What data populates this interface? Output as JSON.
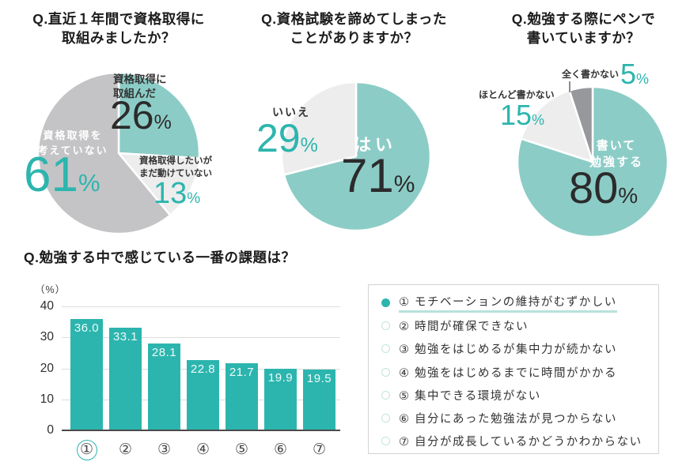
{
  "misc": {
    "percent_sign": "%"
  },
  "colors": {
    "accent_teal": "#2cb5ae",
    "pie_teal": "#8cccc6",
    "pie_gray": "#c4c4c6",
    "pie_light_gray": "#ededed",
    "pie_dark_gray": "#97989b",
    "text_dark": "#2b2b2b",
    "white": "#ffffff",
    "grid_gray": "#dcdcdc",
    "legend_underline": "#b8e2db",
    "legend_open_circle": "#c2e4df"
  },
  "chart_data": [
    {
      "type": "pie",
      "title": "Q.直近１年間で資格取得に取組みましたか？",
      "title_lines": [
        "Q.直近１年間で資格取得に",
        "取組みましたか？"
      ],
      "start_angle_deg": 0,
      "direction": "clockwise",
      "slices": [
        {
          "label": "資格取得に取組んだ",
          "label_lines": [
            "資格取得に",
            "取組んだ"
          ],
          "value": 26,
          "color": "#8cccc6",
          "value_color": "#2b2b2b"
        },
        {
          "label": "資格取得したいがまだ動けていない",
          "label_lines": [
            "資格取得したいが",
            "まだ動けていない"
          ],
          "value": 13,
          "color": "#ededed",
          "value_color": "#2cb5ae"
        },
        {
          "label": "資格取得を考えていない",
          "label_lines": [
            "資格取得を",
            "考えていない"
          ],
          "value": 61,
          "color": "#c4c4c6",
          "value_color": "#2cb5ae"
        }
      ]
    },
    {
      "type": "pie",
      "title": "Q.資格試験を諦めてしまったことがありますか？",
      "title_lines": [
        "Q.資格試験を諦めてしまった",
        "ことがありますか？"
      ],
      "start_angle_deg": 0,
      "direction": "clockwise",
      "slices": [
        {
          "label": "はい",
          "value": 71,
          "color": "#8cccc6",
          "value_color": "#2b2b2b"
        },
        {
          "label": "いいえ",
          "value": 29,
          "color": "#ededed",
          "value_color": "#2cb5ae"
        }
      ]
    },
    {
      "type": "pie",
      "title": "Q.勉強する際にペンで書いていますか？",
      "title_lines": [
        "Q.勉強する際にペンで",
        "書いていますか？"
      ],
      "start_angle_deg": 0,
      "direction": "clockwise",
      "slices": [
        {
          "label": "書いて勉強する",
          "label_lines": [
            "書いて",
            "勉強する"
          ],
          "value": 80,
          "color": "#8cccc6",
          "value_color": "#2b2b2b"
        },
        {
          "label": "ほとんど書かない",
          "value": 15,
          "color": "#ededed",
          "value_color": "#2cb5ae"
        },
        {
          "label": "全く書かない",
          "value": 5,
          "color": "#97989b",
          "value_color": "#2cb5ae"
        }
      ]
    },
    {
      "type": "bar",
      "title": "Q.勉強する中で感じている一番の課題は？",
      "unit_label": "（%）",
      "categories": [
        "①",
        "②",
        "③",
        "④",
        "⑤",
        "⑥",
        "⑦"
      ],
      "values": [
        36.0,
        33.1,
        28.1,
        22.8,
        21.7,
        19.9,
        19.5
      ],
      "value_labels": [
        "36.0",
        "33.1",
        "28.1",
        "22.8",
        "21.7",
        "19.9",
        "19.5"
      ],
      "yticks": [
        0,
        10,
        20,
        30,
        40
      ],
      "ylim": [
        0,
        40
      ],
      "grid": true,
      "bar_color": "#2cb5ae",
      "highlight_category_index": 0
    }
  ],
  "legend": {
    "items": [
      {
        "label": "① モチベーションの維持がむずかしい",
        "marker": "filled",
        "highlight": true
      },
      {
        "label": "② 時間が確保できない",
        "marker": "open",
        "highlight": false
      },
      {
        "label": "③ 勉強をはじめるが集中力が続かない",
        "marker": "open",
        "highlight": false
      },
      {
        "label": "④ 勉強をはじめるまでに時間がかかる",
        "marker": "open",
        "highlight": false
      },
      {
        "label": "⑤ 集中できる環境がない",
        "marker": "open",
        "highlight": false
      },
      {
        "label": "⑥ 自分にあった勉強法が見つからない",
        "marker": "open",
        "highlight": false
      },
      {
        "label": "⑦ 自分が成長しているかどうかわからない",
        "marker": "open",
        "highlight": false
      }
    ]
  }
}
